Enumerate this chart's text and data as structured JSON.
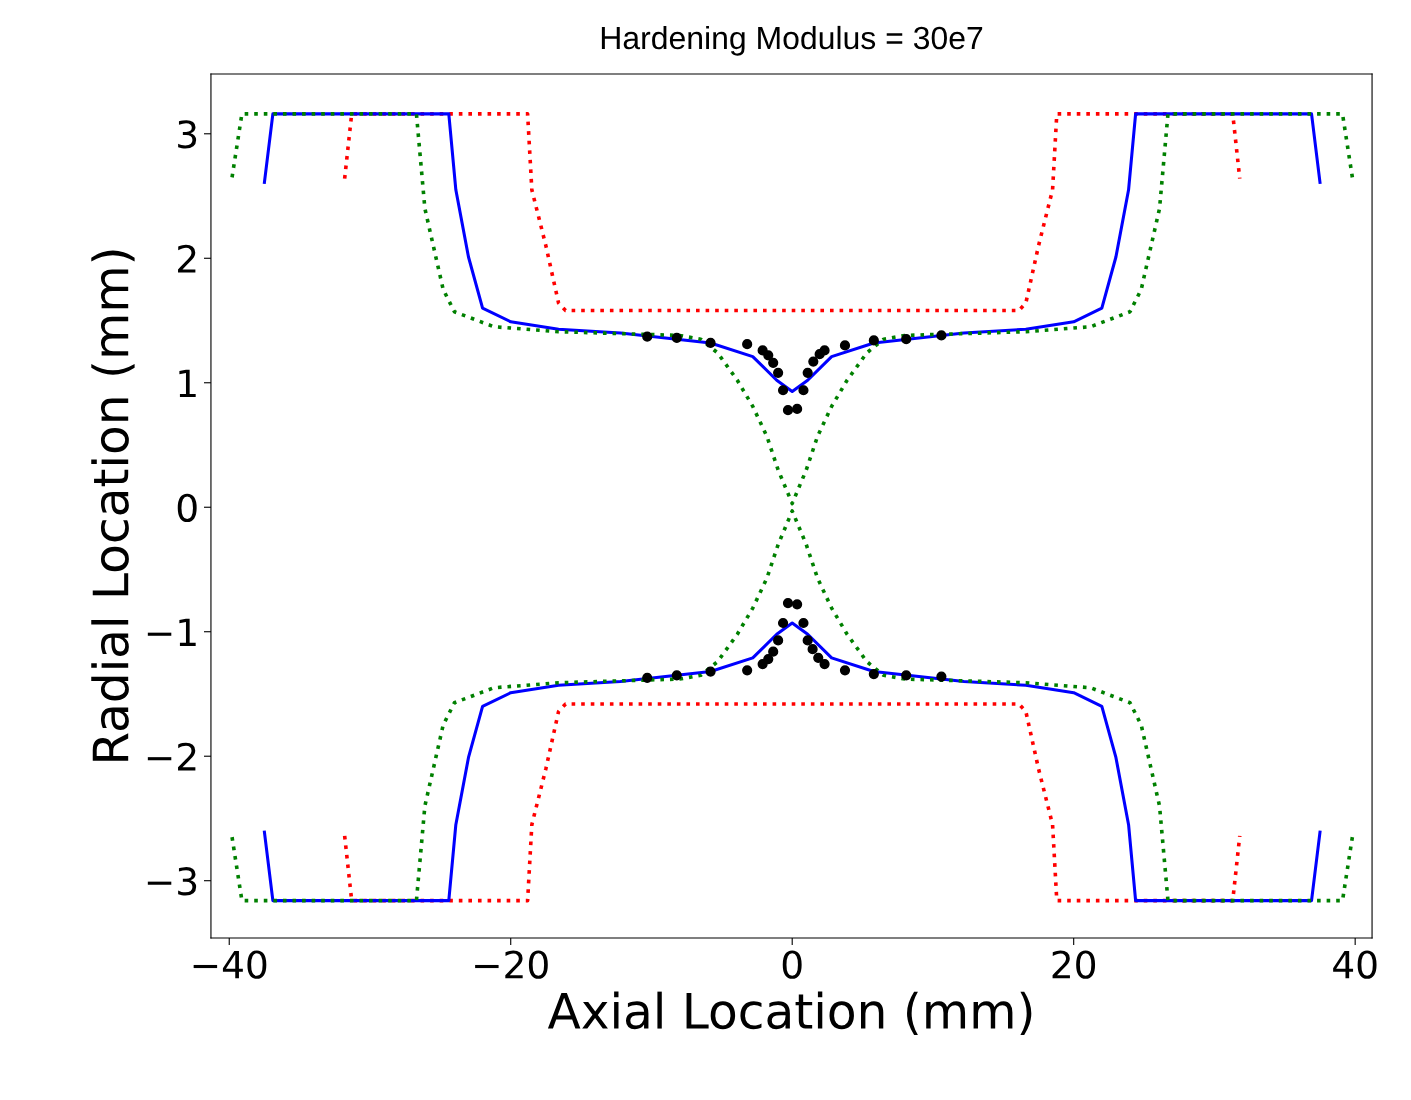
{
  "chart_data": {
    "type": "line",
    "title": "Hardening Modulus = 30e7",
    "xlabel": "Axial Location (mm)",
    "ylabel": "Radial Location (mm)",
    "xlim": [
      -41.3,
      41.2
    ],
    "ylim": [
      -3.46,
      3.48
    ],
    "xticks": [
      {
        "value": -40,
        "label": "−40"
      },
      {
        "value": -20,
        "label": "−20"
      },
      0,
      20,
      40
    ],
    "yticks": [
      {
        "value": -3,
        "label": "−3"
      },
      {
        "value": -2,
        "label": "−2"
      },
      {
        "value": -1,
        "label": "−1"
      },
      0,
      1,
      2,
      3
    ],
    "grid": false,
    "series": [
      {
        "line_style": "dotted",
        "color": "#ff0000",
        "x": [
          -31.8,
          -31.3,
          -18.8,
          -18.5,
          -17.5,
          -16.6,
          -16.1,
          16.1,
          16.6,
          17.5,
          18.5,
          18.8,
          31.3,
          31.8,
          null,
          -31.8,
          -31.3,
          -18.8,
          -18.5,
          -17.5,
          -16.6,
          -16.1,
          16.1,
          16.6,
          17.5,
          18.5,
          18.8,
          31.3,
          31.8
        ],
        "values": [
          2.64,
          3.16,
          3.16,
          2.55,
          2.1,
          1.64,
          1.58,
          1.58,
          1.64,
          2.1,
          2.55,
          3.16,
          3.16,
          2.64,
          null,
          -2.64,
          -3.16,
          -3.16,
          -2.55,
          -2.1,
          -1.64,
          -1.58,
          -1.58,
          -1.64,
          -2.1,
          -2.55,
          -3.16,
          -3.16,
          -2.64
        ]
      },
      {
        "line_style": "solid",
        "color": "#0000ff",
        "x": [
          -37.5,
          -36.9,
          -24.4,
          -23.9,
          -23.0,
          -22.0,
          -20.0,
          -16.6,
          -12.2,
          -5.8,
          -2.8,
          -1.1,
          0,
          1.1,
          2.8,
          5.8,
          12.2,
          16.6,
          20.0,
          22.0,
          23.0,
          23.9,
          24.4,
          36.9,
          37.5,
          null,
          -37.5,
          -36.9,
          -24.4,
          -23.9,
          -23.0,
          -22.0,
          -20.0,
          -16.6,
          -12.2,
          -5.8,
          -2.8,
          -1.1,
          0,
          1.1,
          2.8,
          5.8,
          12.2,
          16.6,
          20.0,
          22.0,
          23.0,
          23.9,
          24.4,
          36.9,
          37.5
        ],
        "values": [
          2.61,
          3.16,
          3.16,
          2.55,
          2.01,
          1.6,
          1.49,
          1.43,
          1.4,
          1.32,
          1.21,
          1.02,
          0.93,
          1.02,
          1.21,
          1.32,
          1.4,
          1.43,
          1.49,
          1.6,
          2.01,
          2.55,
          3.16,
          3.16,
          2.61,
          null,
          -2.61,
          -3.16,
          -3.16,
          -2.55,
          -2.01,
          -1.6,
          -1.49,
          -1.43,
          -1.4,
          -1.32,
          -1.21,
          -1.02,
          -0.93,
          -1.02,
          -1.21,
          -1.32,
          -1.4,
          -1.43,
          -1.49,
          -1.6,
          -2.01,
          -2.55,
          -3.16,
          -3.16,
          -2.61
        ]
      },
      {
        "line_style": "dotted",
        "color": "#008000",
        "x": [
          -39.8,
          -39.1,
          -26.7,
          -26.1,
          -24.8,
          -24.0,
          -21.2,
          -16.6,
          -8.0,
          -6.5,
          -5.3,
          -3.9,
          -2.8,
          -1.8,
          -1.0,
          0,
          1.0,
          1.8,
          2.8,
          3.9,
          5.3,
          6.5,
          8.0,
          16.6,
          21.2,
          24.0,
          24.8,
          26.1,
          26.7,
          39.1,
          39.8,
          null,
          -39.8,
          -39.1,
          -26.7,
          -26.1,
          -24.8,
          -24.0,
          -21.2,
          -16.6,
          -8.0,
          -6.5,
          -5.3,
          -3.9,
          -2.8,
          -1.8,
          -1.0,
          0,
          1.0,
          1.8,
          2.8,
          3.9,
          5.3,
          6.5,
          8.0,
          16.6,
          21.2,
          24.0,
          24.8,
          26.1,
          26.7,
          39.1,
          39.8
        ],
        "values": [
          2.65,
          3.16,
          3.16,
          2.4,
          1.75,
          1.57,
          1.45,
          1.41,
          1.38,
          1.35,
          1.24,
          1.02,
          0.81,
          0.57,
          0.3,
          0.03,
          0.3,
          0.57,
          0.81,
          1.02,
          1.24,
          1.35,
          1.38,
          1.41,
          1.45,
          1.57,
          1.75,
          2.4,
          3.16,
          3.16,
          2.65,
          null,
          -2.65,
          -3.16,
          -3.16,
          -2.4,
          -1.75,
          -1.57,
          -1.45,
          -1.41,
          -1.38,
          -1.35,
          -1.24,
          -1.02,
          -0.81,
          -0.57,
          -0.3,
          -0.03,
          -0.3,
          -0.57,
          -0.81,
          -1.02,
          -1.24,
          -1.35,
          -1.38,
          -1.41,
          -1.45,
          -1.57,
          -1.75,
          -2.4,
          -3.16,
          -3.16,
          -2.65
        ]
      },
      {
        "type": "scatter",
        "marker": "circle",
        "color": "#000000",
        "x": [
          -10.3,
          -8.2,
          -5.8,
          -3.2,
          -2.1,
          -1.7,
          -1.35,
          -1.0,
          -0.65,
          -0.3,
          0.35,
          0.8,
          1.1,
          1.5,
          1.95,
          2.3,
          3.75,
          5.8,
          8.1,
          10.6,
          -10.3,
          -8.2,
          -5.8,
          -3.2,
          -2.1,
          -1.7,
          -1.35,
          -1.0,
          -0.65,
          -0.3,
          0.35,
          0.8,
          1.1,
          1.45,
          1.85,
          2.3,
          3.75,
          5.8,
          8.1,
          10.6
        ],
        "values": [
          1.37,
          1.36,
          1.32,
          1.31,
          1.26,
          1.22,
          1.16,
          1.08,
          0.94,
          0.78,
          0.79,
          0.94,
          1.08,
          1.17,
          1.23,
          1.26,
          1.3,
          1.34,
          1.35,
          1.38,
          -1.37,
          -1.35,
          -1.32,
          -1.31,
          -1.26,
          -1.22,
          -1.16,
          -1.07,
          -0.93,
          -0.77,
          -0.78,
          -0.93,
          -1.07,
          -1.14,
          -1.21,
          -1.26,
          -1.31,
          -1.34,
          -1.35,
          -1.36
        ]
      }
    ]
  }
}
